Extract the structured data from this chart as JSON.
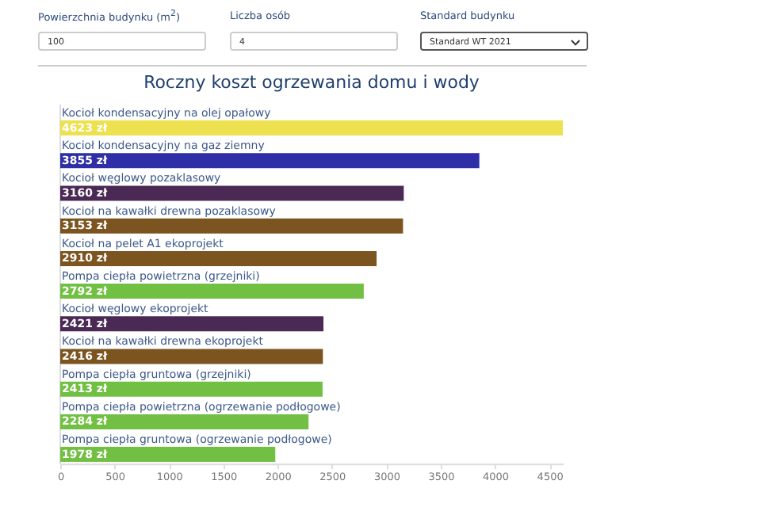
{
  "chart_data": {
    "type": "bar",
    "orientation": "horizontal",
    "title": "Roczny koszt ogrzewania domu i wody",
    "categories": [
      "Kocioł kondensacyjny na olej opałowy",
      "Kocioł kondensacyjny na gaz ziemny",
      "Kocioł węglowy pozaklasowy",
      "Kocioł na kawałki drewna pozaklasowy",
      "Kocioł na pelet A1 ekoprojekt",
      "Pompa ciepła powietrzna (grzejniki)",
      "Kocioł węglowy ekoprojekt",
      "Kocioł na kawałki drewna ekoprojekt",
      "Pompa ciepła gruntowa (grzejniki)",
      "Pompa ciepła powietrzna (ogrzewanie podłogowe)",
      "Pompa ciepła gruntowa (ogrzewanie podłogowe)"
    ],
    "values": [
      4623,
      3855,
      3160,
      3153,
      2910,
      2792,
      2421,
      2416,
      2413,
      2284,
      1978
    ],
    "value_labels": [
      "4623 zł",
      "3855 zł",
      "3160 zł",
      "3153 zł",
      "2910 zł",
      "2792 zł",
      "2421 zł",
      "2416 zł",
      "2413 zł",
      "2284 zł",
      "1978 zł"
    ],
    "colors": [
      "#ede150",
      "#2e2fa6",
      "#4a2a55",
      "#7b5420",
      "#7b5420",
      "#72c043",
      "#4a2a55",
      "#7b5420",
      "#72c043",
      "#72c043",
      "#72c043"
    ],
    "xlim": [
      0,
      4623
    ],
    "xticks": [
      0,
      500,
      1000,
      1500,
      2000,
      2500,
      3000,
      3500,
      4000,
      4500
    ],
    "annotations": [
      "Powierzchnia budynku (m$^{2}$)",
      "100",
      "Liczba osób",
      "4",
      "Standard budynku",
      "Standard WT 2021"
    ],
    "grid": false,
    "legend": false
  }
}
